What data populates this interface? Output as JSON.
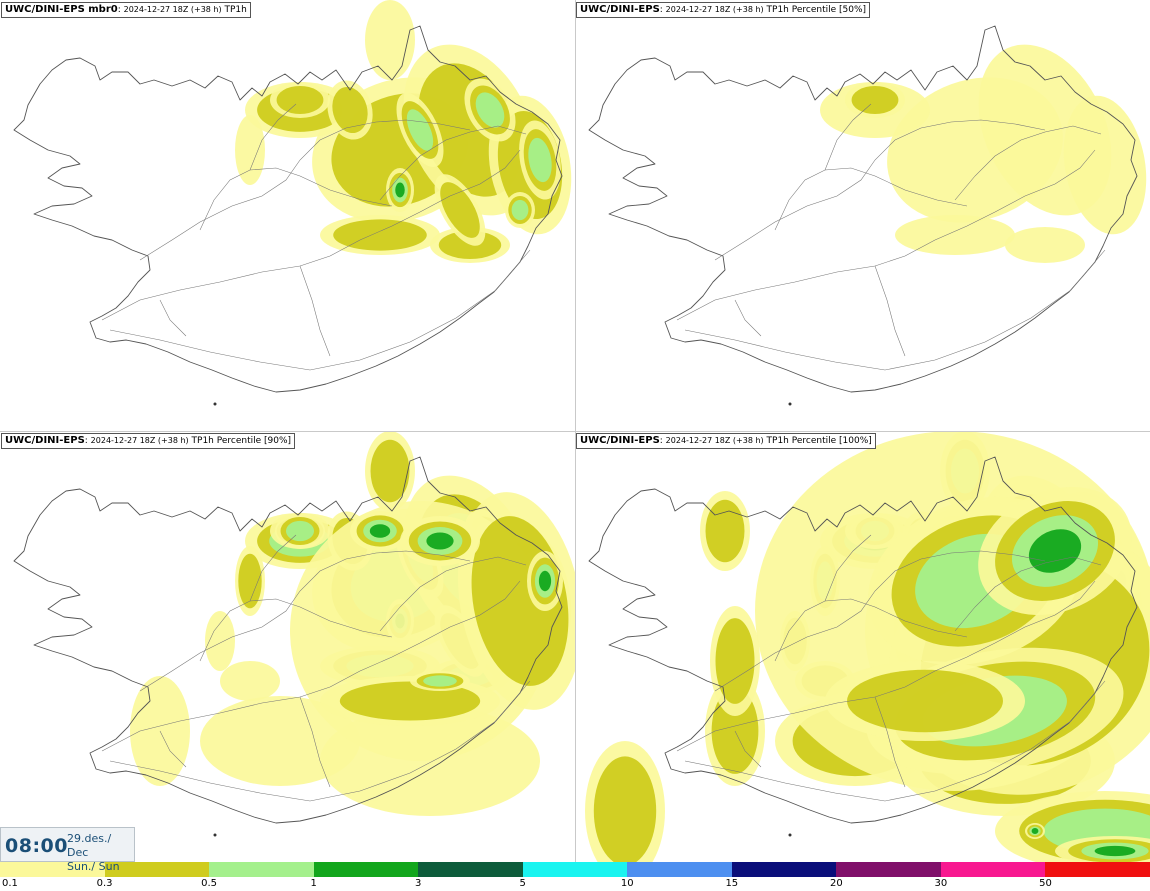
{
  "panels": [
    {
      "model": "UWC/DINI-EPS mbr0",
      "run": "2024-12-27 18Z (+38 h)",
      "product": "TP1h",
      "intensity": 1
    },
    {
      "model": "UWC/DINI-EPS",
      "run": "2024-12-27 18Z (+38 h)",
      "product": "TP1h Percentile [50%]",
      "intensity": 0
    },
    {
      "model": "UWC/DINI-EPS",
      "run": "2024-12-27 18Z (+38 h)",
      "product": "TP1h Percentile [90%]",
      "intensity": 2
    },
    {
      "model": "UWC/DINI-EPS",
      "run": "2024-12-27 18Z (+38 h)",
      "product": "TP1h Percentile [100%]",
      "intensity": 3
    }
  ],
  "valid_time": {
    "clock": "08:00",
    "date_line": "29.des./ Dec",
    "day_line": "Sun./ Sun"
  },
  "legend": {
    "labels": [
      "0.1",
      "0.3",
      "0.5",
      "1",
      "3",
      "5",
      "10",
      "15",
      "20",
      "30",
      "50"
    ],
    "colors": [
      "#fbf89a",
      "#cfcc1e",
      "#a4f08c",
      "#12a61c",
      "#0d5c3b",
      "#1af4f0",
      "#4d8ff0",
      "#0a0e7a",
      "#800f6a",
      "#f81890",
      "#f01010"
    ]
  },
  "map_colors": {
    "coast": "#555555",
    "roads": "#777777"
  }
}
